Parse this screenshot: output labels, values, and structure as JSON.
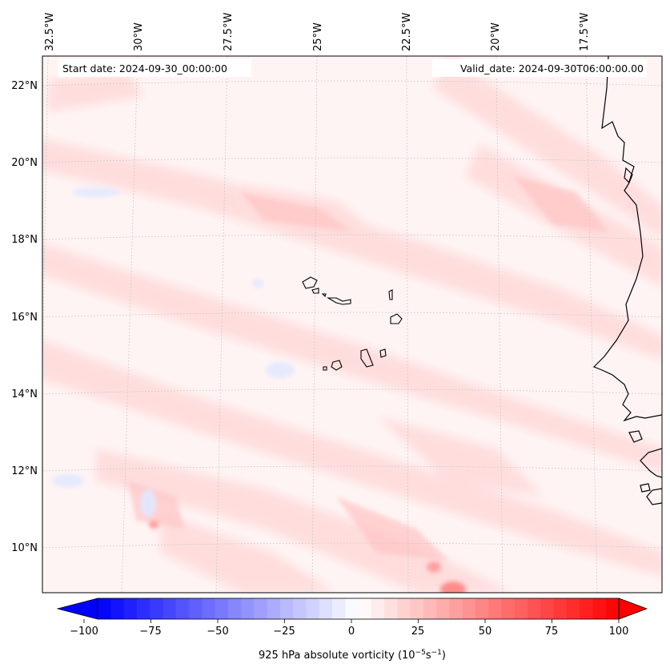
{
  "map": {
    "start_date": "Start date: 2024-09-30_00:00:00",
    "valid_date": "Valid_date: 2024-09-30T06:00:00.00",
    "lon_labels": [
      "32.5°W",
      "30°W",
      "27.5°W",
      "25°W",
      "22.5°W",
      "20°W",
      "17.5°W"
    ],
    "lat_labels": [
      "22°N",
      "20°N",
      "18°N",
      "16°N",
      "14°N",
      "12°N",
      "10°N"
    ],
    "field": "925 hPa absolute vorticity",
    "colors": {
      "negative": "#0000ff",
      "zero": "#ffffff",
      "positive": "#ff0000",
      "coast": "#000000",
      "grid": "#c8c8c8"
    }
  },
  "colorbar": {
    "label": "925 hPa absolute vorticity (10",
    "label_exp1": "−5",
    "label_mid": "s",
    "label_exp2": "−1",
    "label_end": ")",
    "min": -100,
    "max": 100,
    "levels": 40,
    "ticks": [
      "−100",
      "−75",
      "−50",
      "−25",
      "0",
      "25",
      "50",
      "75",
      "100"
    ]
  }
}
